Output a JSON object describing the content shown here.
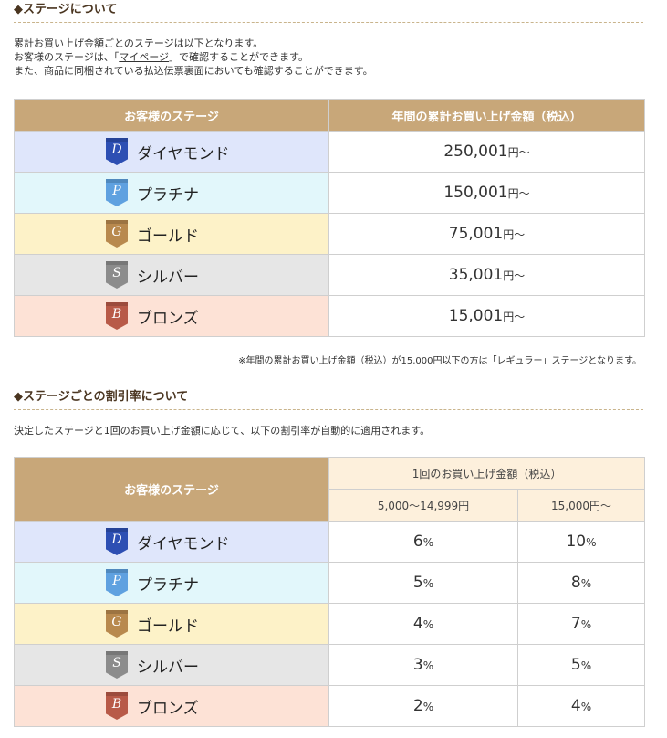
{
  "section1": {
    "title": "◆ステージについて",
    "line1": "累計お買い上げ金額ごとのステージは以下となります。",
    "line2_pre": "お客様のステージは、「",
    "line2_link": "マイページ",
    "line2_post": "」で確認することができます。",
    "line3": "また、商品に同梱されている払込伝票裏面においても確認することができます。",
    "table": {
      "col1": "お客様のステージ",
      "col2": "年間の累計お買い上げ金額（税込）",
      "rows": [
        {
          "letter": "D",
          "stage": "ダイヤモンド",
          "amount": "250,001",
          "unit": "円～"
        },
        {
          "letter": "P",
          "stage": "プラチナ",
          "amount": "150,001",
          "unit": "円～"
        },
        {
          "letter": "G",
          "stage": "ゴールド",
          "amount": "75,001",
          "unit": "円～"
        },
        {
          "letter": "S",
          "stage": "シルバー",
          "amount": "35,001",
          "unit": "円～"
        },
        {
          "letter": "B",
          "stage": "ブロンズ",
          "amount": "15,001",
          "unit": "円～"
        }
      ]
    },
    "note": "※年間の累計お買い上げ金額（税込）が15,000円以下の方は「レギュラー」ステージとなります。"
  },
  "section2": {
    "title": "◆ステージごとの割引率について",
    "line1": "決定したステージと1回のお買い上げ金額に応じて、以下の割引率が自動的に適用されます。",
    "table": {
      "col1": "お客様のステージ",
      "group": "1回のお買い上げ金額（税込）",
      "sub1": "5,000～14,999円",
      "sub2": "15,000円～",
      "rows": [
        {
          "letter": "D",
          "stage": "ダイヤモンド",
          "rate1": "6",
          "rate2": "10"
        },
        {
          "letter": "P",
          "stage": "プラチナ",
          "rate1": "5",
          "rate2": "8"
        },
        {
          "letter": "G",
          "stage": "ゴールド",
          "rate1": "4",
          "rate2": "7"
        },
        {
          "letter": "S",
          "stage": "シルバー",
          "rate1": "3",
          "rate2": "5"
        },
        {
          "letter": "B",
          "stage": "ブロンズ",
          "rate1": "2",
          "rate2": "4"
        }
      ],
      "percent": "%"
    }
  },
  "colors": {
    "diamond_badge": "#2d4fb3",
    "platinum_badge": "#5fa1e0",
    "gold_badge": "#b8894e",
    "silver_badge": "#8c8c8c",
    "bronze_badge": "#b85a48"
  }
}
